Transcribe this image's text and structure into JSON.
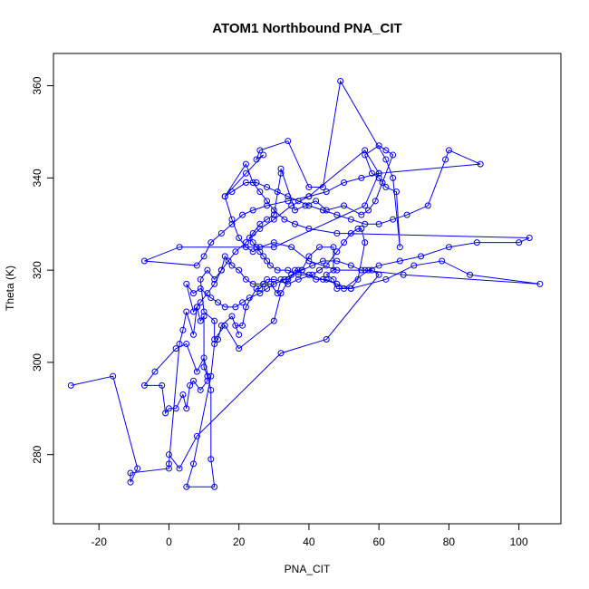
{
  "chart_data": {
    "type": "scatter",
    "title": "ATOM1 Northbound PNA_CIT",
    "xlabel": "PNA_CIT",
    "ylabel": "Theta (K)",
    "xlim": [
      -33,
      112
    ],
    "ylim": [
      265,
      367
    ],
    "xticks": [
      -20,
      0,
      20,
      40,
      60,
      80,
      100
    ],
    "yticks": [
      280,
      300,
      320,
      340,
      360
    ],
    "grid": false,
    "series_color": "#0000ff",
    "series": [
      {
        "points": [
          [
            -28,
            295
          ],
          [
            -16,
            297
          ],
          [
            -9,
            277
          ],
          [
            -11,
            274
          ],
          [
            -11,
            276
          ],
          [
            0,
            277
          ],
          [
            0,
            278
          ],
          [
            3,
            304
          ],
          [
            4,
            307
          ],
          [
            5,
            311
          ],
          [
            7,
            306
          ],
          [
            8,
            312
          ],
          [
            8,
            312
          ],
          [
            9,
            309
          ],
          [
            10,
            310
          ],
          [
            10,
            299
          ],
          [
            11,
            297
          ],
          [
            11,
            296
          ],
          [
            9,
            294
          ],
          [
            7,
            296
          ],
          [
            6,
            295
          ],
          [
            5,
            290
          ],
          [
            4,
            293
          ],
          [
            2,
            290
          ],
          [
            0,
            290
          ],
          [
            -1,
            289
          ],
          [
            -2,
            295
          ],
          [
            -7,
            295
          ],
          [
            -4,
            298
          ],
          [
            2,
            303
          ],
          [
            5,
            304
          ],
          [
            8,
            298
          ],
          [
            10,
            301
          ],
          [
            12,
            294
          ],
          [
            12,
            279
          ],
          [
            13,
            273
          ],
          [
            5,
            273
          ],
          [
            7,
            278
          ],
          [
            12,
            297
          ],
          [
            13,
            304
          ],
          [
            14,
            305
          ],
          [
            15,
            308
          ],
          [
            18,
            310
          ],
          [
            20,
            306
          ],
          [
            19,
            308
          ],
          [
            21,
            308
          ],
          [
            22,
            312
          ],
          [
            25,
            316
          ],
          [
            26,
            316
          ],
          [
            27,
            317
          ],
          [
            29,
            317
          ],
          [
            31,
            315
          ],
          [
            32,
            318
          ],
          [
            34,
            318
          ],
          [
            37,
            320
          ],
          [
            38,
            320
          ],
          [
            40,
            323
          ],
          [
            43,
            325
          ],
          [
            47,
            325
          ],
          [
            47,
            320
          ],
          [
            45,
            319
          ],
          [
            47,
            318
          ],
          [
            48,
            316
          ],
          [
            52,
            316
          ],
          [
            54,
            318
          ],
          [
            56,
            326
          ],
          [
            55,
            329
          ],
          [
            54,
            329
          ],
          [
            52,
            328
          ],
          [
            50,
            326
          ],
          [
            48,
            324
          ],
          [
            45,
            321
          ],
          [
            43,
            320
          ],
          [
            41,
            319
          ],
          [
            37,
            318
          ],
          [
            34,
            317
          ],
          [
            30,
            318
          ],
          [
            28,
            318
          ],
          [
            27,
            317
          ],
          [
            24,
            317
          ],
          [
            22,
            318
          ],
          [
            20,
            320
          ],
          [
            18,
            321
          ],
          [
            16,
            323
          ],
          [
            15,
            320
          ],
          [
            13,
            318
          ],
          [
            11,
            320
          ],
          [
            9,
            318
          ],
          [
            10,
            311
          ],
          [
            13,
            309
          ],
          [
            13,
            305
          ],
          [
            16,
            308
          ],
          [
            20,
            303
          ],
          [
            30,
            309
          ],
          [
            32,
            315
          ],
          [
            36,
            320
          ],
          [
            44,
            318
          ],
          [
            52,
            316
          ],
          [
            62,
            318
          ],
          [
            70,
            321
          ],
          [
            78,
            322
          ],
          [
            86,
            319
          ],
          [
            106,
            317
          ],
          [
            67,
            319
          ],
          [
            56,
            320
          ],
          [
            48,
            320
          ],
          [
            40,
            322
          ],
          [
            35,
            325
          ],
          [
            30,
            326
          ],
          [
            26,
            325
          ],
          [
            24,
            324
          ],
          [
            22,
            325
          ],
          [
            20,
            327
          ],
          [
            18,
            331
          ],
          [
            16,
            336
          ],
          [
            22,
            341
          ],
          [
            27,
            345
          ],
          [
            25,
            344
          ],
          [
            26,
            346
          ],
          [
            34,
            348
          ],
          [
            40,
            338
          ],
          [
            44,
            338
          ],
          [
            49,
            361
          ],
          [
            62,
            344
          ],
          [
            64,
            340
          ],
          [
            66,
            325
          ],
          [
            65,
            337
          ],
          [
            62,
            338
          ],
          [
            60,
            340
          ],
          [
            58,
            341
          ],
          [
            56,
            345
          ],
          [
            60,
            347
          ],
          [
            62,
            346
          ],
          [
            64,
            345
          ],
          [
            61,
            339
          ],
          [
            59,
            335
          ],
          [
            57,
            333
          ],
          [
            55,
            332
          ],
          [
            50,
            334
          ],
          [
            45,
            333
          ],
          [
            42,
            335
          ],
          [
            39,
            334
          ],
          [
            36,
            333
          ],
          [
            32,
            342
          ],
          [
            32,
            341
          ],
          [
            30,
            332
          ],
          [
            28,
            331
          ],
          [
            26,
            330
          ],
          [
            24,
            328
          ],
          [
            23,
            327
          ],
          [
            24,
            326
          ],
          [
            25,
            325
          ],
          [
            26,
            324
          ],
          [
            27,
            323
          ],
          [
            28,
            322
          ],
          [
            29,
            321
          ],
          [
            31,
            320
          ],
          [
            34,
            320
          ],
          [
            37,
            319
          ],
          [
            40,
            319
          ],
          [
            42,
            318
          ],
          [
            45,
            318
          ],
          [
            48,
            317
          ],
          [
            50,
            316
          ],
          [
            57,
            320
          ],
          [
            60,
            321
          ],
          [
            66,
            322
          ],
          [
            72,
            323
          ],
          [
            80,
            325
          ],
          [
            88,
            326
          ],
          [
            100,
            326
          ],
          [
            103,
            327
          ],
          [
            48,
            328
          ],
          [
            40,
            329
          ],
          [
            36,
            330
          ],
          [
            33,
            331
          ],
          [
            30,
            333
          ],
          [
            28,
            335
          ],
          [
            26,
            337
          ],
          [
            24,
            339
          ],
          [
            22,
            343
          ],
          [
            16,
            336
          ],
          [
            18,
            337
          ],
          [
            22,
            339
          ],
          [
            25,
            339
          ],
          [
            28,
            338
          ],
          [
            31,
            337
          ],
          [
            34,
            336
          ],
          [
            37,
            335
          ],
          [
            40,
            334
          ],
          [
            44,
            333
          ],
          [
            48,
            332
          ],
          [
            52,
            331
          ],
          [
            56,
            330
          ],
          [
            60,
            330
          ],
          [
            64,
            331
          ],
          [
            68,
            332
          ],
          [
            74,
            334
          ],
          [
            79,
            344
          ],
          [
            80,
            346
          ],
          [
            89,
            343
          ],
          [
            60,
            341
          ],
          [
            55,
            340
          ],
          [
            50,
            339
          ],
          [
            45,
            337
          ],
          [
            40,
            336
          ],
          [
            34,
            335
          ],
          [
            28,
            334
          ],
          [
            24,
            333
          ],
          [
            21,
            332
          ],
          [
            18,
            330
          ],
          [
            15,
            328
          ],
          [
            12,
            326
          ],
          [
            10,
            323
          ],
          [
            8,
            321
          ],
          [
            -7,
            322
          ],
          [
            3,
            325
          ],
          [
            30,
            325
          ],
          [
            56,
            334
          ],
          [
            60,
            341
          ],
          [
            56,
            346
          ],
          [
            40,
            336
          ],
          [
            35,
            334
          ],
          [
            30,
            331
          ],
          [
            26,
            329
          ],
          [
            22,
            326
          ],
          [
            19,
            324
          ],
          [
            17,
            322
          ],
          [
            15,
            320
          ],
          [
            13,
            317
          ],
          [
            11,
            315
          ],
          [
            9,
            313
          ],
          [
            7,
            311
          ],
          [
            5,
            317
          ],
          [
            7,
            315
          ],
          [
            9,
            316
          ],
          [
            12,
            314
          ],
          [
            14,
            313
          ],
          [
            16,
            312
          ],
          [
            19,
            312
          ],
          [
            21,
            313
          ],
          [
            23,
            314
          ],
          [
            26,
            315
          ],
          [
            28,
            316
          ],
          [
            30,
            317
          ],
          [
            33,
            318
          ],
          [
            35,
            319
          ],
          [
            38,
            320
          ],
          [
            41,
            321
          ],
          [
            44,
            322
          ],
          [
            48,
            322
          ],
          [
            52,
            321
          ],
          [
            55,
            320
          ],
          [
            58,
            320
          ],
          [
            60,
            319
          ],
          [
            45,
            305
          ],
          [
            32,
            302
          ],
          [
            8,
            284
          ],
          [
            3,
            277
          ],
          [
            0,
            280
          ]
        ]
      }
    ]
  }
}
